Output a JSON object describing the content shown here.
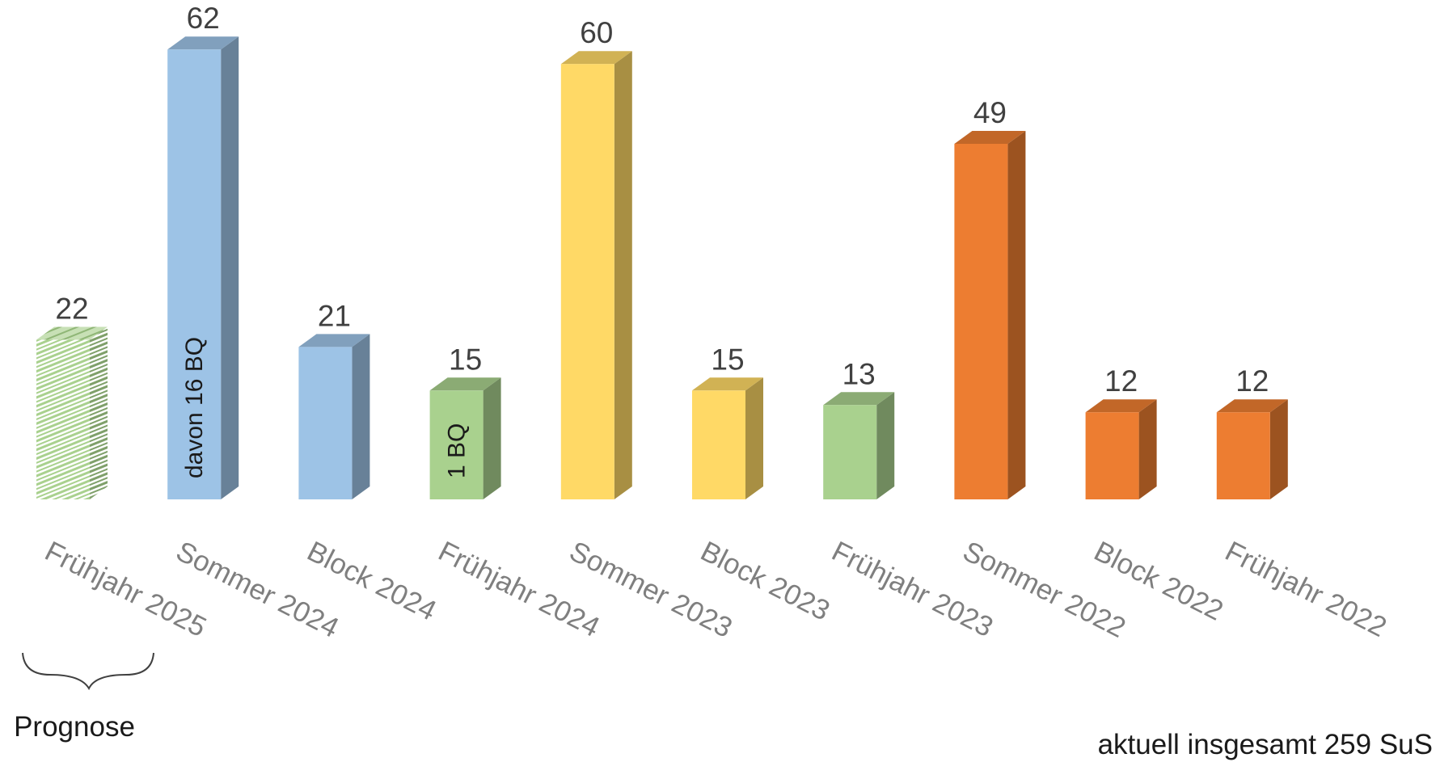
{
  "chart_data": {
    "type": "bar",
    "categories": [
      "Frühjahr 2025",
      "Sommer 2024",
      "Block 2024",
      "Frühjahr 2024",
      "Sommer 2023",
      "Block 2023",
      "Frühjahr 2023",
      "Sommer 2022",
      "Block 2022",
      "Frühjahr 2022"
    ],
    "values": [
      22,
      62,
      21,
      15,
      60,
      15,
      13,
      49,
      12,
      12
    ],
    "colors": [
      "#a9d18e",
      "#9dc3e6",
      "#9dc3e6",
      "#a9d18e",
      "#ffd966",
      "#ffd966",
      "#a9d18e",
      "#ed7d31",
      "#ed7d31",
      "#ed7d31"
    ],
    "hatched": [
      true,
      false,
      false,
      false,
      false,
      false,
      false,
      false,
      false,
      false
    ],
    "bar_notes": [
      "",
      "davon 16 BQ",
      "",
      "1 BQ",
      "",
      "",
      "",
      "",
      "",
      ""
    ],
    "style": "3d-column",
    "grid": false,
    "legend": "none"
  },
  "annotations": {
    "forecast_label": "Prognose",
    "total_note": "aktuell insgesamt 259 SuS"
  }
}
